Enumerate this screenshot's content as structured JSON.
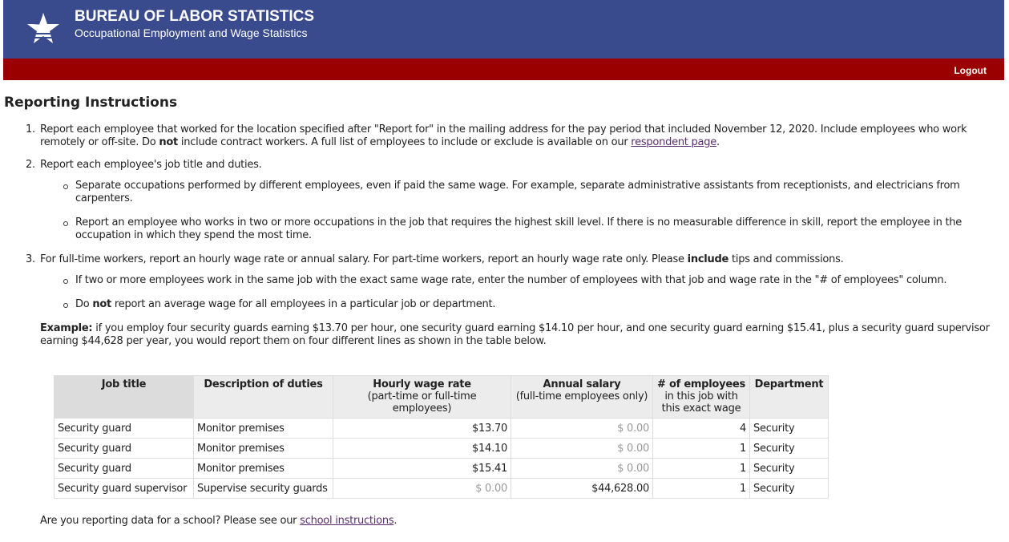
{
  "header": {
    "agency": "BUREAU OF LABOR STATISTICS",
    "program": "Occupational Employment and Wage Statistics"
  },
  "nav": {
    "logout": "Logout"
  },
  "page": {
    "title": "Reporting Instructions"
  },
  "instructions": [
    {
      "number": "1.",
      "parts": [
        "Report each employee that worked for the location specified after \"Report for\" in the mailing address for the pay period that included November 12, 2020. Include employees who work remotely or off-site. Do ",
        "not",
        " include contract workers. A full list of employees to include or exclude is available on our ",
        "respondent page",
        "."
      ]
    },
    {
      "number": "2.",
      "parts": [
        "Report each employee's job title and duties."
      ],
      "bullets": [
        [
          "Separate occupations performed by different employees, even if paid the same wage. For example, separate administrative assistants from receptionists, and electricians from carpenters."
        ],
        [
          "Report an employee who works in two or more occupations in the job that requires the highest skill level. If there is no measurable difference in skill, report the employee in the occupation in which they spend the most time."
        ]
      ]
    },
    {
      "number": "3.",
      "parts": [
        "For full-time workers, report an hourly wage rate or annual salary. For part-time workers, report an hourly wage rate only. Please ",
        "include",
        " tips and commissions."
      ],
      "bullets": [
        [
          "If two or more employees work in the same job with the exact same wage rate, enter the number of employees with that job and wage rate in the \"# of employees\" column."
        ],
        [
          "Do ",
          "not",
          " report an average wage for all employees in a particular job or department."
        ]
      ],
      "example": [
        "Example:",
        " if you employ four security guards earning $13.70 per hour, one security guard earning $14.10 per hour, and one security guard earning $15.41, plus a security guard supervisor earning $44,628 per year, you would report them on four different lines as shown in the table below."
      ]
    }
  ],
  "table": {
    "headers": [
      {
        "title": "Job title"
      },
      {
        "title": "Description of duties"
      },
      {
        "title": "Hourly wage rate",
        "subtitle": "(part-time or full-time employees)"
      },
      {
        "title": "Annual salary",
        "subtitle": "(full-time employees only)"
      },
      {
        "title": "# of employees",
        "subtitle": "in this job with this exact wage"
      },
      {
        "title": "Department"
      }
    ],
    "rows": [
      [
        "Security guard",
        "Monitor premises",
        "$13.70",
        "$ 0.00",
        "4",
        "Security"
      ],
      [
        "Security guard",
        "Monitor premises",
        "$14.10",
        "$ 0.00",
        "1",
        "Security"
      ],
      [
        "Security guard",
        "Monitor premises",
        "$15.41",
        "$ 0.00",
        "1",
        "Security"
      ],
      [
        "Security guard supervisor",
        "Supervise security guards",
        "$ 0.00",
        "$44,628.00",
        "1",
        "Security"
      ]
    ]
  },
  "footer": {
    "parts": [
      "Are you reporting data for a school? Please see our ",
      "school instructions",
      "."
    ]
  }
}
